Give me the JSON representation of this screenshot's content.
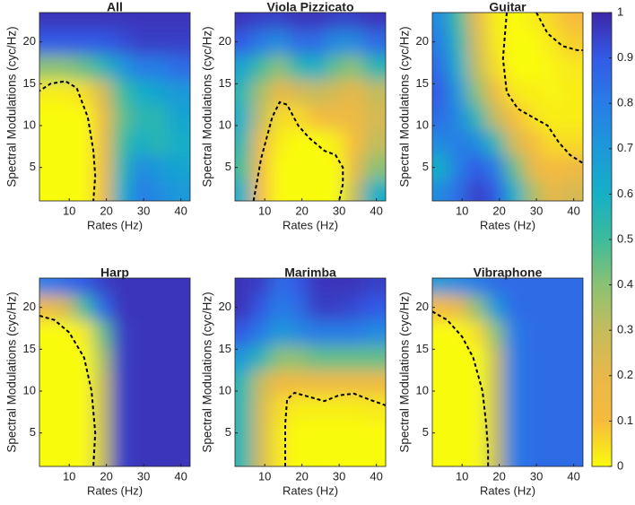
{
  "chart_data": [
    {
      "type": "heatmap",
      "title": "All",
      "xlabel": "Rates (Hz)",
      "ylabel": "Spectral Modulations (cyc/Hz)",
      "xlim": [
        2,
        42.5
      ],
      "ylim": [
        1,
        23.5
      ],
      "xticks": [
        10,
        20,
        30,
        40
      ],
      "yticks": [
        5,
        10,
        15,
        20
      ],
      "x": [
        4,
        9,
        14,
        19,
        24,
        29,
        34,
        39
      ],
      "y": [
        2,
        5,
        8,
        11,
        14,
        17,
        20,
        23
      ],
      "z": [
        [
          0,
          0,
          0,
          0.15,
          0.6,
          0.8,
          0.75,
          0.7
        ],
        [
          0,
          0,
          0,
          0.15,
          0.55,
          0.75,
          0.7,
          0.65
        ],
        [
          0,
          0,
          0,
          0.15,
          0.5,
          0.6,
          0.55,
          0.6
        ],
        [
          0,
          0,
          0,
          0.15,
          0.45,
          0.55,
          0.55,
          0.65
        ],
        [
          0.02,
          0.02,
          0.05,
          0.25,
          0.5,
          0.6,
          0.65,
          0.7
        ],
        [
          0.4,
          0.4,
          0.45,
          0.55,
          0.7,
          0.8,
          0.8,
          0.85
        ],
        [
          0.9,
          0.9,
          0.9,
          0.9,
          0.92,
          0.95,
          0.95,
          0.95
        ],
        [
          0.97,
          0.97,
          0.97,
          0.97,
          0.97,
          0.97,
          0.97,
          0.97
        ]
      ],
      "contours": [
        {
          "x": [
            1.5,
            5,
            9,
            12,
            15,
            16.5,
            17,
            16.5
          ],
          "y": [
            14,
            15,
            15.3,
            14.5,
            11,
            7,
            4,
            1
          ]
        }
      ]
    },
    {
      "type": "heatmap",
      "title": "Viola Pizzicato",
      "xlabel": "Rates (Hz)",
      "ylabel": "Spectral Modulations (cyc/Hz)",
      "xlim": [
        2,
        42.5
      ],
      "ylim": [
        1,
        23.5
      ],
      "xticks": [
        10,
        20,
        30,
        40
      ],
      "yticks": [
        5,
        10,
        15,
        20
      ],
      "x": [
        4,
        9,
        14,
        19,
        24,
        29,
        34,
        39
      ],
      "y": [
        2,
        5,
        8,
        11,
        14,
        17,
        20,
        23
      ],
      "z": [
        [
          0.6,
          0.1,
          0,
          0,
          0,
          0,
          0.3,
          0.6
        ],
        [
          0.5,
          0.1,
          0,
          0,
          0,
          0,
          0.2,
          0.4
        ],
        [
          0.55,
          0.15,
          0.02,
          0,
          0,
          0.02,
          0.1,
          0.3
        ],
        [
          0.6,
          0.3,
          0.05,
          0.05,
          0.1,
          0.15,
          0.15,
          0.25
        ],
        [
          0.55,
          0.35,
          0.2,
          0.25,
          0.3,
          0.25,
          0.2,
          0.3
        ],
        [
          0.65,
          0.5,
          0.4,
          0.55,
          0.6,
          0.45,
          0.4,
          0.55
        ],
        [
          0.9,
          0.8,
          0.75,
          0.85,
          0.85,
          0.75,
          0.75,
          0.85
        ],
        [
          0.97,
          0.95,
          0.95,
          0.97,
          0.97,
          0.95,
          0.95,
          0.97
        ]
      ],
      "contours": [
        {
          "x": [
            7,
            9,
            12,
            14,
            16,
            19,
            22,
            26,
            29,
            31,
            31,
            30
          ],
          "y": [
            1,
            6,
            11,
            12.8,
            12.5,
            10,
            8.5,
            7,
            6.5,
            5,
            3,
            1
          ]
        }
      ]
    },
    {
      "type": "heatmap",
      "title": "Guitar",
      "xlabel": "Rates (Hz)",
      "ylabel": "Spectral Modulations (cyc/Hz)",
      "xlim": [
        2,
        42.5
      ],
      "ylim": [
        1,
        23.5
      ],
      "xticks": [
        10,
        20,
        30,
        40
      ],
      "yticks": [
        5,
        10,
        15,
        20
      ],
      "x": [
        4,
        9,
        14,
        19,
        24,
        29,
        34,
        39
      ],
      "y": [
        2,
        5,
        8,
        11,
        14,
        17,
        20,
        23
      ],
      "z": [
        [
          0.75,
          0.85,
          0.95,
          0.9,
          0.6,
          0.35,
          0.2,
          0.25
        ],
        [
          0.6,
          0.8,
          0.9,
          0.8,
          0.45,
          0.2,
          0.1,
          0.15
        ],
        [
          0.75,
          0.8,
          0.75,
          0.55,
          0.25,
          0.1,
          0.05,
          0.05
        ],
        [
          0.85,
          0.75,
          0.55,
          0.3,
          0.1,
          0.04,
          0.02,
          0.02
        ],
        [
          0.9,
          0.7,
          0.4,
          0.15,
          0.03,
          0.02,
          0.01,
          0.02
        ],
        [
          0.85,
          0.6,
          0.3,
          0.05,
          0,
          0,
          0.01,
          0.03
        ],
        [
          0.8,
          0.55,
          0.25,
          0.03,
          0,
          0,
          0.03,
          0.07
        ],
        [
          0.75,
          0.5,
          0.2,
          0.02,
          0,
          0.02,
          0.06,
          0.1
        ]
      ],
      "contours": [
        {
          "x": [
            22,
            21,
            22,
            25,
            29,
            33,
            36,
            39,
            42.5
          ],
          "y": [
            23.5,
            18,
            14,
            12,
            11,
            10,
            8,
            6.5,
            5.5
          ]
        },
        {
          "x": [
            30,
            33,
            37,
            41,
            42.5
          ],
          "y": [
            23.5,
            21,
            19.5,
            19,
            19
          ]
        }
      ]
    },
    {
      "type": "heatmap",
      "title": "Harp",
      "xlabel": "Rates (Hz)",
      "ylabel": "Spectral Modulations (cyc/Hz)",
      "xlim": [
        2,
        42.5
      ],
      "ylim": [
        1,
        23.5
      ],
      "xticks": [
        10,
        20,
        30,
        40
      ],
      "yticks": [
        5,
        10,
        15,
        20
      ],
      "x": [
        4,
        9,
        14,
        19,
        24,
        29,
        34,
        39
      ],
      "y": [
        2,
        5,
        8,
        11,
        14,
        17,
        20,
        23
      ],
      "z": [
        [
          0,
          0,
          0,
          0.3,
          0.95,
          0.97,
          0.97,
          0.97
        ],
        [
          0,
          0,
          0,
          0.3,
          0.95,
          0.97,
          0.97,
          0.97
        ],
        [
          0,
          0,
          0,
          0.3,
          0.95,
          0.97,
          0.97,
          0.97
        ],
        [
          0,
          0,
          0,
          0.3,
          0.95,
          0.97,
          0.97,
          0.97
        ],
        [
          0,
          0,
          0,
          0.35,
          0.95,
          0.97,
          0.97,
          0.97
        ],
        [
          0,
          0,
          0.03,
          0.45,
          0.95,
          0.97,
          0.97,
          0.97
        ],
        [
          0.15,
          0.25,
          0.5,
          0.85,
          0.97,
          0.97,
          0.97,
          0.97
        ],
        [
          0.8,
          0.85,
          0.9,
          0.95,
          0.97,
          0.97,
          0.97,
          0.97
        ]
      ],
      "contours": [
        {
          "x": [
            2,
            6,
            10,
            14,
            16,
            17,
            16.5
          ],
          "y": [
            19,
            18.5,
            17,
            14,
            10,
            5,
            1
          ]
        }
      ]
    },
    {
      "type": "heatmap",
      "title": "Marimba",
      "xlabel": "Rates (Hz)",
      "ylabel": "Spectral Modulations (cyc/Hz)",
      "xlim": [
        2,
        42.5
      ],
      "ylim": [
        1,
        23.5
      ],
      "xticks": [
        10,
        20,
        30,
        40
      ],
      "yticks": [
        5,
        10,
        15,
        20
      ],
      "x": [
        4,
        9,
        14,
        19,
        24,
        29,
        34,
        39
      ],
      "y": [
        2,
        5,
        8,
        11,
        14,
        17,
        20,
        23
      ],
      "z": [
        [
          0.55,
          0.25,
          0.03,
          0,
          0,
          0,
          0,
          0
        ],
        [
          0.55,
          0.25,
          0.03,
          0,
          0,
          0,
          0,
          0
        ],
        [
          0.55,
          0.25,
          0.05,
          0.02,
          0.02,
          0.02,
          0.02,
          0.03
        ],
        [
          0.55,
          0.3,
          0.15,
          0.15,
          0.15,
          0.15,
          0.15,
          0.15
        ],
        [
          0.7,
          0.55,
          0.4,
          0.4,
          0.45,
          0.45,
          0.45,
          0.45
        ],
        [
          0.9,
          0.8,
          0.7,
          0.75,
          0.8,
          0.8,
          0.8,
          0.75
        ],
        [
          0.97,
          0.9,
          0.8,
          0.85,
          0.95,
          0.95,
          0.93,
          0.9
        ],
        [
          0.97,
          0.95,
          0.85,
          0.9,
          0.97,
          0.97,
          0.97,
          0.95
        ]
      ],
      "contours": [
        {
          "x": [
            15.5,
            15.5,
            16,
            18,
            22,
            26,
            30,
            34,
            38,
            42.5
          ],
          "y": [
            1,
            6,
            9,
            9.8,
            9.3,
            8.8,
            9.5,
            9.7,
            9,
            8.3
          ]
        }
      ]
    },
    {
      "type": "heatmap",
      "title": "Vibraphone",
      "xlabel": "Rates (Hz)",
      "ylabel": "Spectral Modulations (cyc/Hz)",
      "xlim": [
        2,
        42.5
      ],
      "ylim": [
        1,
        23.5
      ],
      "xticks": [
        10,
        20,
        30,
        40
      ],
      "yticks": [
        5,
        10,
        15,
        20
      ],
      "x": [
        4,
        9,
        14,
        19,
        24,
        29,
        34,
        39
      ],
      "y": [
        2,
        5,
        8,
        11,
        14,
        17,
        20,
        23
      ],
      "z": [
        [
          0,
          0,
          0,
          0.3,
          0.8,
          0.85,
          0.85,
          0.85
        ],
        [
          0,
          0,
          0,
          0.3,
          0.8,
          0.85,
          0.85,
          0.85
        ],
        [
          0,
          0,
          0,
          0.3,
          0.8,
          0.85,
          0.85,
          0.85
        ],
        [
          0,
          0,
          0,
          0.3,
          0.8,
          0.85,
          0.85,
          0.85
        ],
        [
          0,
          0,
          0,
          0.3,
          0.8,
          0.85,
          0.85,
          0.85
        ],
        [
          0,
          0,
          0.05,
          0.4,
          0.8,
          0.85,
          0.85,
          0.85
        ],
        [
          0.1,
          0.2,
          0.4,
          0.7,
          0.85,
          0.85,
          0.85,
          0.85
        ],
        [
          0.7,
          0.75,
          0.8,
          0.85,
          0.85,
          0.85,
          0.85,
          0.85
        ]
      ],
      "contours": [
        {
          "x": [
            2,
            6,
            10,
            13,
            15.5,
            16.5,
            17,
            17
          ],
          "y": [
            19.5,
            18.5,
            16.5,
            14,
            10,
            6,
            3,
            1
          ]
        }
      ]
    }
  ],
  "colorbar": {
    "clim": [
      0,
      1
    ],
    "ticks": [
      0,
      0.1,
      0.2,
      0.3,
      0.4,
      0.5,
      0.6,
      0.7,
      0.8,
      0.9,
      1
    ],
    "colormap": [
      "#f9fb0e",
      "#f6bb3c",
      "#e8b84a",
      "#c4bc5c",
      "#8bc174",
      "#3dbb9b",
      "#16afc6",
      "#1c99d9",
      "#287de6",
      "#335ae6",
      "#3e26a8"
    ]
  }
}
